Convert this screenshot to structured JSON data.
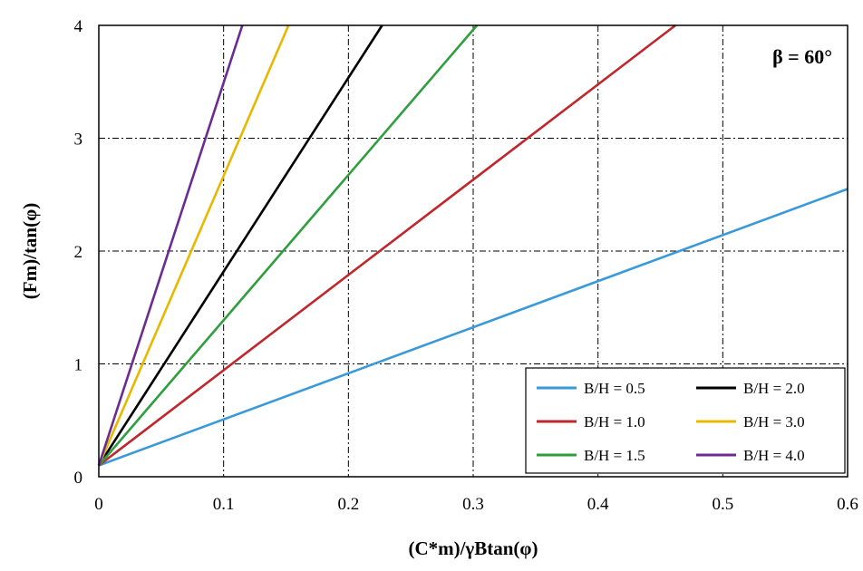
{
  "chart_data": {
    "type": "line",
    "title": "",
    "xlabel": "(C*m)/γBtan(φ)",
    "ylabel": "(Fm)/tan(φ)",
    "annotation": "β = 60°",
    "xlim": [
      0,
      0.6
    ],
    "ylim": [
      0,
      4
    ],
    "x_ticks": [
      "0",
      "0.1",
      "0.2",
      "0.3",
      "0.4",
      "0.5",
      "0.6"
    ],
    "y_ticks": [
      "0",
      "1",
      "2",
      "3",
      "4"
    ],
    "grid": true,
    "legend_position": "bottom-right",
    "series": [
      {
        "name": "B/H = 0.5",
        "color": "#3a9ad9",
        "x": [
          0,
          0.6
        ],
        "y": [
          0.1,
          2.55
        ]
      },
      {
        "name": "B/H = 2.0",
        "color": "#000000",
        "x": [
          0,
          0.227
        ],
        "y": [
          0.1,
          4.0
        ]
      },
      {
        "name": "B/H = 1.0",
        "color": "#c0272d",
        "x": [
          0,
          0.462
        ],
        "y": [
          0.1,
          4.0
        ]
      },
      {
        "name": "B/H = 3.0",
        "color": "#e8b800",
        "x": [
          0,
          0.152
        ],
        "y": [
          0.1,
          4.0
        ]
      },
      {
        "name": "B/H = 1.5",
        "color": "#2e9e3e",
        "x": [
          0,
          0.303
        ],
        "y": [
          0.1,
          4.0
        ]
      },
      {
        "name": "B/H = 4.0",
        "color": "#6b2c91",
        "x": [
          0,
          0.115
        ],
        "y": [
          0.1,
          4.0
        ]
      }
    ]
  }
}
